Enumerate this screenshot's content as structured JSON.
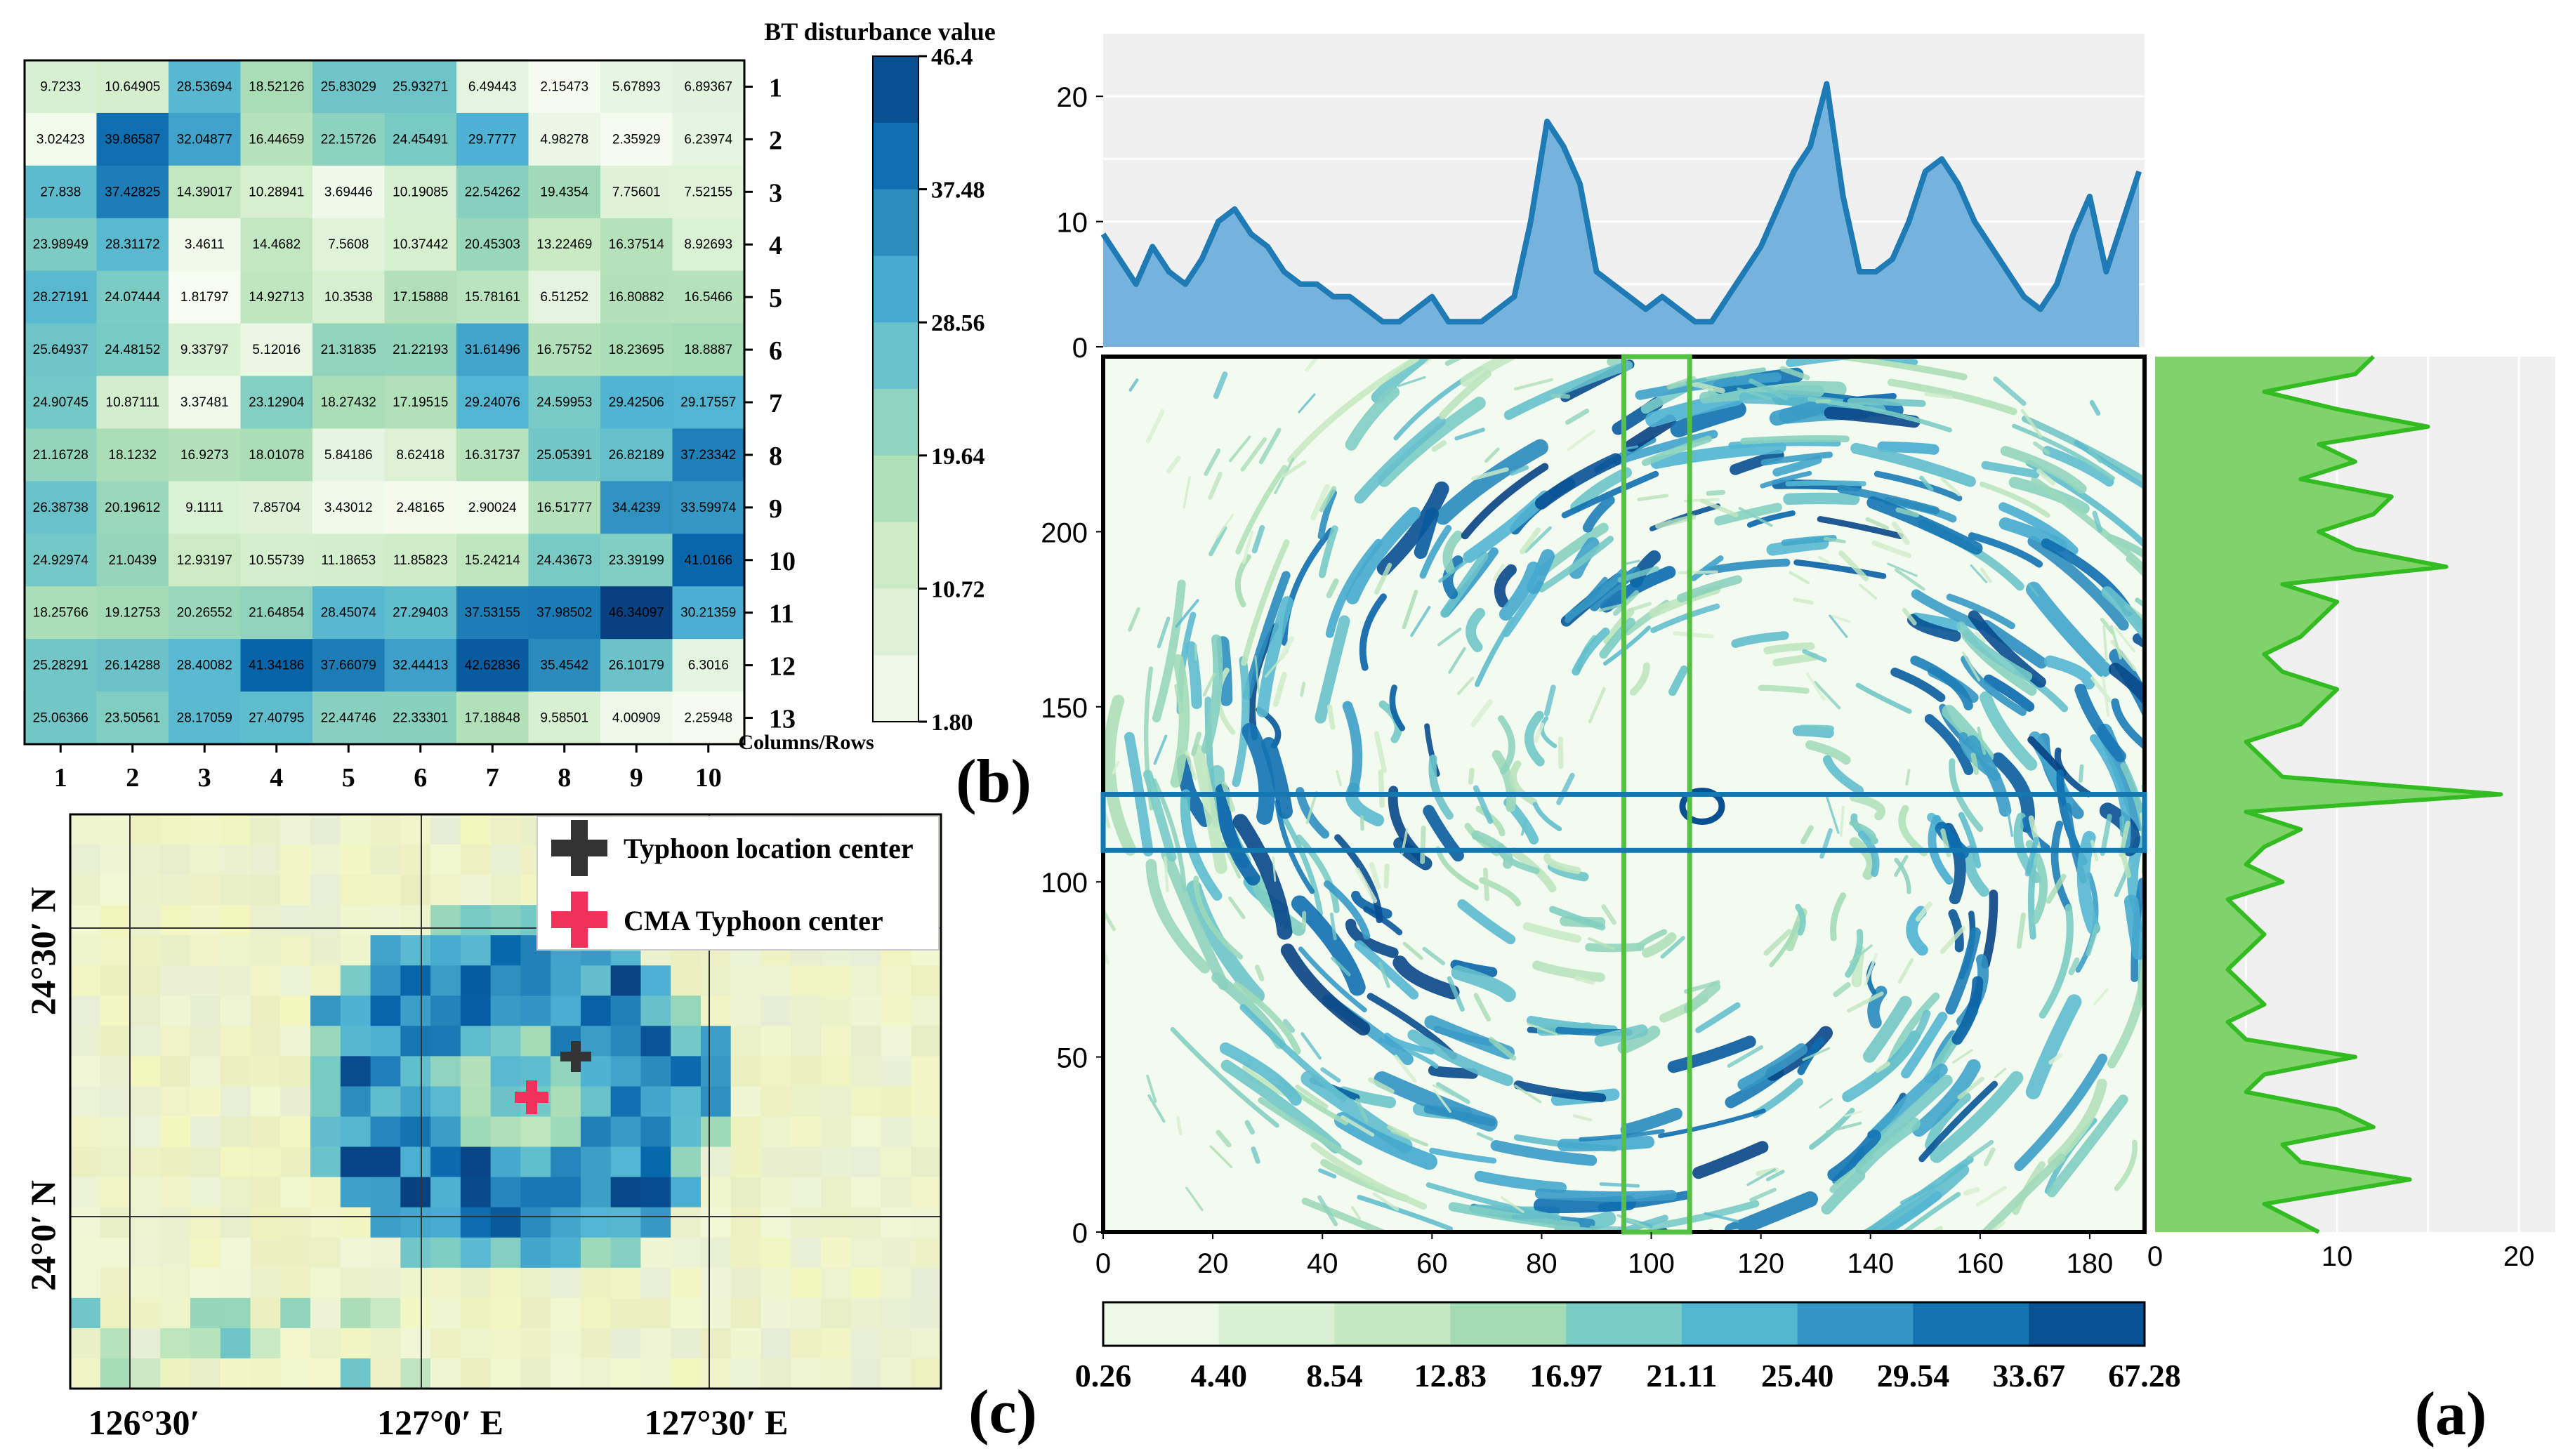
{
  "panel_labels": {
    "a": "(a)",
    "b": "(b)",
    "c": "(c)"
  },
  "colors": {
    "scale": [
      "#f7fcf0",
      "#e0f3db",
      "#ccebc5",
      "#a8ddb5",
      "#7bccc4",
      "#4eb3d3",
      "#2b8cbe",
      "#0868ac",
      "#084081"
    ],
    "profile_blue": "#1f7bb6",
    "profile_blue_fill": "#76b3dc",
    "profile_green": "#33bb22",
    "profile_green_fill": "#7fd36a",
    "box_green": "#55c144",
    "box_blue": "#1577b0",
    "panel_bg": "#f0f0f0",
    "map_bg": "#eef2c6",
    "black_cross": "#333333",
    "red_cross": "#f0325a"
  },
  "chart_data": [
    {
      "id": "b",
      "type": "heatmap",
      "title": "BT disturbance value",
      "axis_note": "Columns/Rows",
      "columns": [
        "1",
        "2",
        "3",
        "4",
        "5",
        "6",
        "7",
        "8",
        "9",
        "10"
      ],
      "rows": [
        "1",
        "2",
        "3",
        "4",
        "5",
        "6",
        "7",
        "8",
        "9",
        "10",
        "11",
        "12",
        "13"
      ],
      "colorbar": {
        "min": 1.8,
        "max": 46.4,
        "ticks": [
          "46.4",
          "37.48",
          "28.56",
          "19.64",
          "10.72",
          "1.80"
        ]
      },
      "values": [
        [
          "9.7233",
          "10.64905",
          "28.53694",
          "18.52126",
          "25.83029",
          "25.93271",
          "6.49443",
          "2.15473",
          "5.67893",
          "6.89367"
        ],
        [
          "3.02423",
          "39.86587",
          "32.04877",
          "16.44659",
          "22.15726",
          "24.45491",
          "29.7777",
          "4.98278",
          "2.35929",
          "6.23974"
        ],
        [
          "27.838",
          "37.42825",
          "14.39017",
          "10.28941",
          "3.69446",
          "10.19085",
          "22.54262",
          "19.4354",
          "7.75601",
          "7.52155"
        ],
        [
          "23.98949",
          "28.31172",
          "3.4611",
          "14.4682",
          "7.5608",
          "10.37442",
          "20.45303",
          "13.22469",
          "16.37514",
          "8.92693"
        ],
        [
          "28.27191",
          "24.07444",
          "1.81797",
          "14.92713",
          "10.3538",
          "17.15888",
          "15.78161",
          "6.51252",
          "16.80882",
          "16.5466"
        ],
        [
          "25.64937",
          "24.48152",
          "9.33797",
          "5.12016",
          "21.31835",
          "21.22193",
          "31.61496",
          "16.75752",
          "18.23695",
          "18.8887"
        ],
        [
          "24.90745",
          "10.87111",
          "3.37481",
          "23.12904",
          "18.27432",
          "17.19515",
          "29.24076",
          "24.59953",
          "29.42506",
          "29.17557"
        ],
        [
          "21.16728",
          "18.1232",
          "16.9273",
          "18.01078",
          "5.84186",
          "8.62418",
          "16.31737",
          "25.05391",
          "26.82189",
          "37.23342"
        ],
        [
          "26.38738",
          "20.19612",
          "9.1111",
          "7.85704",
          "3.43012",
          "2.48165",
          "2.90024",
          "16.51777",
          "34.4239",
          "33.59974"
        ],
        [
          "24.92974",
          "21.0439",
          "12.93197",
          "10.55739",
          "11.18653",
          "11.85823",
          "15.24214",
          "24.43673",
          "23.39199",
          "41.0166"
        ],
        [
          "18.25766",
          "19.12753",
          "20.26552",
          "21.64854",
          "28.45074",
          "27.29403",
          "37.53155",
          "37.98502",
          "46.34097",
          "30.21359"
        ],
        [
          "25.28291",
          "26.14288",
          "28.40082",
          "41.34186",
          "37.66079",
          "32.44413",
          "42.62836",
          "35.4542",
          "26.10179",
          "6.3016"
        ],
        [
          "25.06366",
          "23.50561",
          "28.17059",
          "27.40795",
          "22.44746",
          "22.33301",
          "17.18848",
          "9.58501",
          "4.00909",
          "2.25948"
        ]
      ]
    },
    {
      "id": "a-main",
      "type": "heatmap",
      "xlim": [
        0,
        190
      ],
      "ylim": [
        0,
        250
      ],
      "xticks": [
        "0",
        "20",
        "40",
        "60",
        "80",
        "100",
        "120",
        "140",
        "160",
        "180"
      ],
      "yticks": [
        "0",
        "50",
        "100",
        "150",
        "200"
      ],
      "colorbar_ticks": [
        "0.26",
        "4.40",
        "8.54",
        "12.83",
        "16.97",
        "21.11",
        "25.40",
        "29.54",
        "33.67",
        "67.28"
      ],
      "vertical_band_x": [
        95,
        107
      ],
      "horizontal_band_y": [
        109,
        125
      ]
    },
    {
      "id": "a-top-profile",
      "type": "area",
      "ylim": [
        0,
        25
      ],
      "yticks": [
        "0",
        "10",
        "20"
      ],
      "x": [
        0,
        3,
        6,
        9,
        12,
        15,
        18,
        21,
        24,
        27,
        30,
        33,
        36,
        39,
        42,
        45,
        48,
        51,
        54,
        57,
        60,
        63,
        66,
        69,
        72,
        75,
        78,
        81,
        84,
        87,
        90,
        93,
        96,
        99,
        102,
        105,
        108,
        111,
        114,
        117,
        120,
        123,
        126,
        129,
        132,
        135,
        138,
        141,
        144,
        147,
        150,
        153,
        156,
        159,
        162,
        165,
        168,
        171,
        174,
        177,
        180,
        183,
        186,
        189
      ],
      "y": [
        9,
        7,
        5,
        8,
        6,
        5,
        7,
        10,
        11,
        9,
        8,
        6,
        5,
        5,
        4,
        4,
        3,
        2,
        2,
        3,
        4,
        2,
        2,
        2,
        3,
        4,
        10,
        18,
        16,
        13,
        6,
        5,
        4,
        3,
        4,
        3,
        2,
        2,
        4,
        6,
        8,
        11,
        14,
        16,
        21,
        12,
        6,
        6,
        7,
        10,
        14,
        15,
        13,
        10,
        8,
        6,
        4,
        3,
        5,
        9,
        12,
        6,
        10,
        14
      ]
    },
    {
      "id": "a-right-profile",
      "type": "area",
      "orientation": "vertical",
      "xlim": [
        0,
        22
      ],
      "xticks": [
        "0",
        "10",
        "20"
      ],
      "y": [
        0,
        8,
        15,
        20,
        25,
        30,
        35,
        40,
        45,
        50,
        55,
        60,
        65,
        70,
        75,
        80,
        85,
        90,
        95,
        100,
        105,
        110,
        115,
        120,
        125,
        130,
        135,
        140,
        145,
        150,
        155,
        160,
        165,
        170,
        175,
        180,
        185,
        190,
        195,
        200,
        205,
        210,
        215,
        220,
        225,
        230,
        235,
        240,
        245,
        250
      ],
      "x": [
        9,
        6,
        14,
        8,
        7,
        12,
        10,
        5,
        6,
        11,
        5,
        4,
        6,
        5,
        4,
        5,
        6,
        5,
        4,
        7,
        5,
        6,
        8,
        5,
        19,
        7,
        6,
        5,
        8,
        9,
        10,
        7,
        6,
        8,
        9,
        10,
        7,
        16,
        11,
        9,
        12,
        13,
        8,
        11,
        9,
        15,
        10,
        6,
        11,
        12
      ]
    },
    {
      "id": "c",
      "type": "heatmap",
      "x_tick_labels": [
        "126°30′",
        "127°0′ E",
        "127°30′ E"
      ],
      "y_tick_labels": [
        "24°30′ N",
        "24°0′ N"
      ],
      "legend": [
        {
          "marker": "black-cross",
          "label": "Typhoon location center"
        },
        {
          "marker": "red-cross",
          "label": "CMA Typhoon center"
        }
      ]
    }
  ]
}
